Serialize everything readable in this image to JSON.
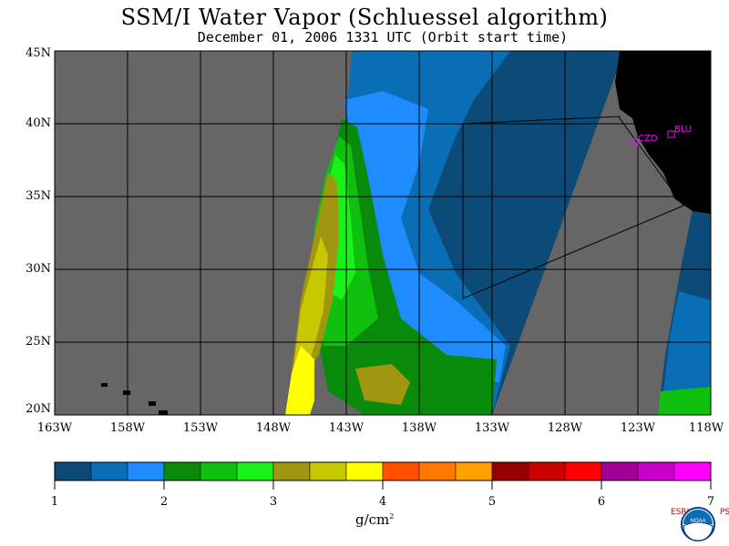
{
  "title": "SSM/I Water Vapor (Schluessel algorithm)",
  "subtitle": "December 01, 2006  1331 UTC  (Orbit start time)",
  "lat_labels": [
    "45N",
    "40N",
    "35N",
    "30N",
    "25N",
    "20N"
  ],
  "lon_labels": [
    "163W",
    "158W",
    "153W",
    "148W",
    "143W",
    "138W",
    "133W",
    "128W",
    "123W",
    "118W"
  ],
  "stations": [
    {
      "name": "CZD"
    },
    {
      "name": "BLU"
    }
  ],
  "colorbar": {
    "ticks": [
      "1",
      "2",
      "3",
      "4",
      "5",
      "6",
      "7"
    ],
    "colors": [
      "#0c4a78",
      "#0a6eb4",
      "#1e8cff",
      "#0a8a0a",
      "#10c00e",
      "#1af01a",
      "#a09610",
      "#c8c800",
      "#ffff00",
      "#ff5000",
      "#ff7800",
      "#ffa000",
      "#960000",
      "#c80000",
      "#ff0000",
      "#a00096",
      "#c800c8",
      "#ff00ff"
    ],
    "units": "g/cm",
    "units_exp": "2"
  },
  "colors": {
    "no_data": "#666666",
    "land": "#000000",
    "station": "#ff00ff"
  },
  "logo": {
    "name": "NOAA",
    "left_text": "ESRL",
    "right_text": "PSD"
  }
}
